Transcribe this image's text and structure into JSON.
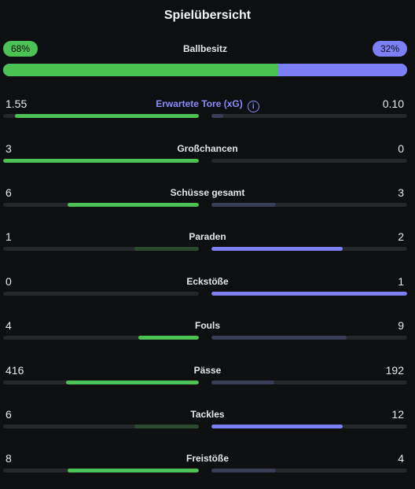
{
  "title": "Spielübersicht",
  "possession": {
    "label": "Ballbesitz",
    "home": "68%",
    "away": "32%",
    "home_fraction": 0.68
  },
  "colors": {
    "home": "#4cc254",
    "away": "#7d7ff6",
    "track": "#25282b"
  },
  "stats": [
    {
      "label": "Erwartete Tore (xG)",
      "home": "1.55",
      "away": "0.10",
      "home_frac": 0.94,
      "away_frac": 0.06,
      "winner": "home",
      "accent": true,
      "icon": "info-icon"
    },
    {
      "label": "Großchancen",
      "home": "3",
      "away": "0",
      "home_frac": 1.0,
      "away_frac": 0.0,
      "winner": "home"
    },
    {
      "label": "Schüsse gesamt",
      "home": "6",
      "away": "3",
      "home_frac": 0.67,
      "away_frac": 0.33,
      "winner": "home"
    },
    {
      "label": "Paraden",
      "home": "1",
      "away": "2",
      "home_frac": 0.33,
      "away_frac": 0.67,
      "winner": "away"
    },
    {
      "label": "Eckstöße",
      "home": "0",
      "away": "1",
      "home_frac": 0.0,
      "away_frac": 1.0,
      "winner": "away"
    },
    {
      "label": "Fouls",
      "home": "4",
      "away": "9",
      "home_frac": 0.31,
      "away_frac": 0.69,
      "winner": "home"
    },
    {
      "label": "Pässe",
      "home": "416",
      "away": "192",
      "home_frac": 0.68,
      "away_frac": 0.32,
      "winner": "home"
    },
    {
      "label": "Tackles",
      "home": "6",
      "away": "12",
      "home_frac": 0.33,
      "away_frac": 0.67,
      "winner": "away"
    },
    {
      "label": "Freistöße",
      "home": "8",
      "away": "4",
      "home_frac": 0.67,
      "away_frac": 0.33,
      "winner": "home"
    }
  ]
}
